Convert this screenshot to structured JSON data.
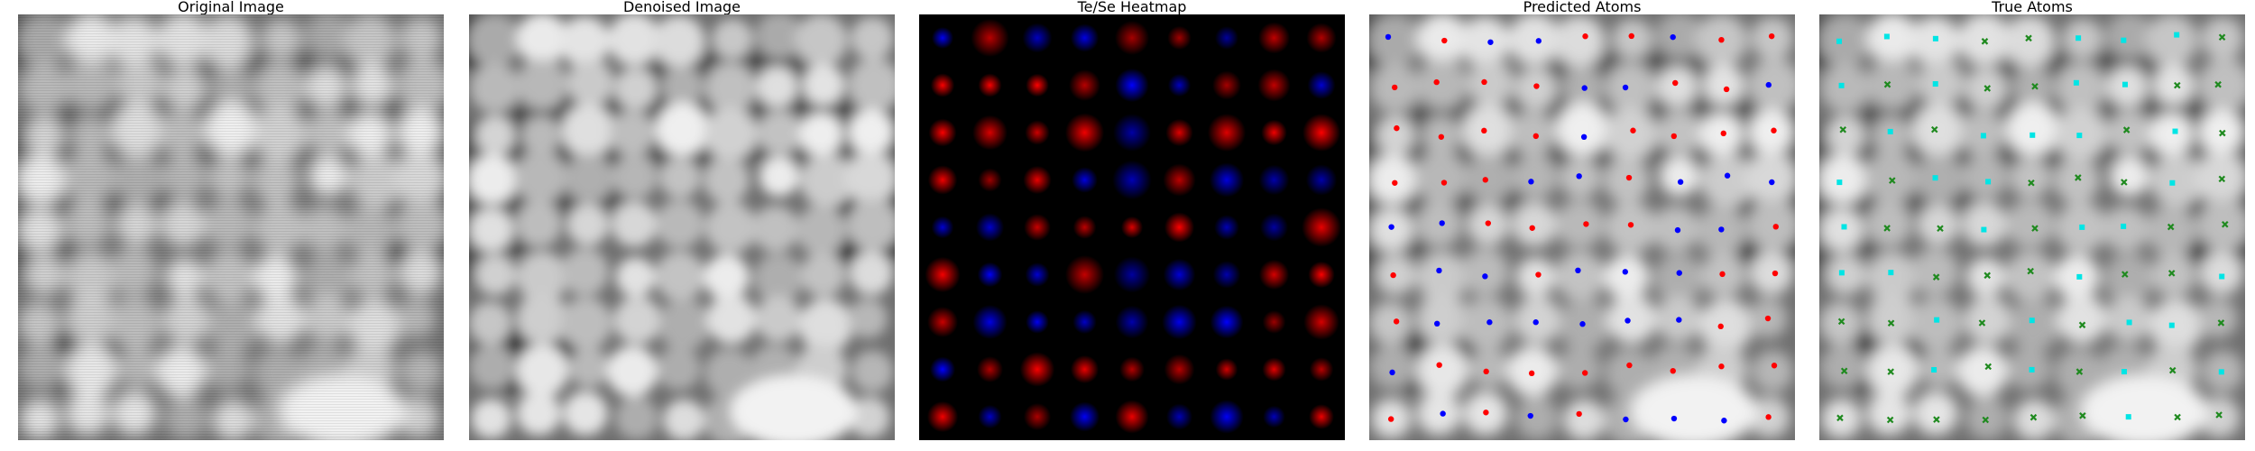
{
  "panels": [
    {
      "id": "original",
      "title": "Original Image"
    },
    {
      "id": "denoised",
      "title": "Denoised Image"
    },
    {
      "id": "heatmap",
      "title": "Te/Se Heatmap"
    },
    {
      "id": "predicted",
      "title": "Predicted Atoms"
    },
    {
      "id": "true",
      "title": "True Atoms"
    }
  ],
  "colors": {
    "te": "#ff0000",
    "se": "#0000ff",
    "true_a": "#00e5e5",
    "true_b": "#1f8a1f",
    "heatmap_bg": "#000000"
  },
  "icons": {
    "predicted_marker": "dot",
    "true_marker_a": "square",
    "true_marker_b": "cross"
  }
}
